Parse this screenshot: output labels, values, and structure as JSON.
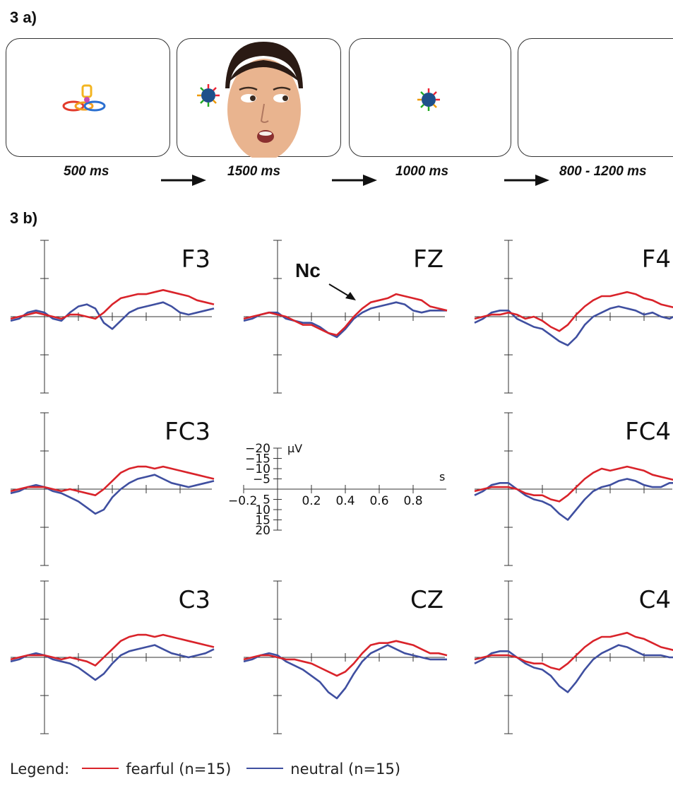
{
  "panel_a": {
    "label": "3 a)",
    "frames": [
      {
        "duration": "500 ms",
        "stimulus": "toy"
      },
      {
        "duration": "1500 ms",
        "stimulus": "face with toy"
      },
      {
        "duration": "1000 ms",
        "stimulus": "toy"
      },
      {
        "duration": "800 - 1200 ms",
        "stimulus": "blank"
      }
    ]
  },
  "panel_b": {
    "label": "3 b)",
    "annotation": "Nc"
  },
  "legend": {
    "title": "Legend:",
    "fearful": "fearful (n=15)",
    "neutral": "neutral (n=15)"
  },
  "colors": {
    "fearful": "#d9232a",
    "neutral": "#3f4fa0",
    "axis": "#333333"
  },
  "chart_data": {
    "type": "line",
    "x_unit": "s",
    "y_unit": "µV",
    "y_inverted": true,
    "xlim": [
      -0.2,
      1.0
    ],
    "ylim": [
      -20,
      20
    ],
    "scale_ticks_x": [
      -0.2,
      0.2,
      0.4,
      0.6,
      0.8
    ],
    "scale_ticks_y": [
      -20,
      -15,
      -10,
      -5,
      5,
      10,
      15,
      20
    ],
    "x": [
      -0.2,
      -0.15,
      -0.1,
      -0.05,
      0.0,
      0.05,
      0.1,
      0.15,
      0.2,
      0.25,
      0.3,
      0.35,
      0.4,
      0.45,
      0.5,
      0.55,
      0.6,
      0.65,
      0.7,
      0.75,
      0.8,
      0.85,
      0.9,
      0.95,
      1.0
    ],
    "series_names": [
      "fearful",
      "neutral"
    ],
    "channels": [
      {
        "name": "F3",
        "fearful": [
          1,
          0,
          -1,
          -2,
          -1,
          0,
          1,
          -1,
          -1,
          0,
          1,
          -2,
          -6,
          -9,
          -10,
          -11,
          -11,
          -12,
          -13,
          -12,
          -11,
          -10,
          -8,
          -7,
          -6
        ],
        "neutral": [
          2,
          1,
          -2,
          -3,
          -2,
          1,
          2,
          -2,
          -5,
          -6,
          -4,
          3,
          6,
          2,
          -2,
          -4,
          -5,
          -6,
          -7,
          -5,
          -2,
          -1,
          -2,
          -3,
          -4
        ]
      },
      {
        "name": "FZ",
        "fearful": [
          1,
          0,
          -1,
          -2,
          -1,
          0,
          2,
          4,
          4,
          6,
          8,
          9,
          5,
          0,
          -4,
          -7,
          -8,
          -9,
          -11,
          -10,
          -9,
          -8,
          -5,
          -4,
          -3
        ],
        "neutral": [
          2,
          1,
          -1,
          -2,
          -2,
          1,
          2,
          3,
          3,
          5,
          8,
          10,
          6,
          1,
          -2,
          -4,
          -5,
          -6,
          -7,
          -6,
          -3,
          -2,
          -3,
          -3,
          -3
        ]
      },
      {
        "name": "F4",
        "fearful": [
          1,
          0,
          -1,
          -1,
          -2,
          -1,
          1,
          0,
          2,
          5,
          7,
          4,
          -1,
          -5,
          -8,
          -10,
          -10,
          -11,
          -12,
          -11,
          -9,
          -8,
          -6,
          -5,
          -4
        ],
        "neutral": [
          3,
          1,
          -2,
          -3,
          -3,
          1,
          3,
          5,
          6,
          9,
          12,
          14,
          10,
          4,
          0,
          -2,
          -4,
          -5,
          -4,
          -3,
          -1,
          -2,
          0,
          1,
          -1
        ]
      },
      {
        "name": "FC3",
        "fearful": [
          1,
          0,
          -1,
          -1,
          -1,
          0,
          1,
          0,
          1,
          2,
          3,
          0,
          -4,
          -8,
          -10,
          -11,
          -11,
          -10,
          -11,
          -10,
          -9,
          -8,
          -7,
          -6,
          -5
        ],
        "neutral": [
          2,
          1,
          -1,
          -2,
          -1,
          1,
          2,
          4,
          6,
          9,
          12,
          10,
          4,
          0,
          -3,
          -5,
          -6,
          -7,
          -5,
          -3,
          -2,
          -1,
          -2,
          -3,
          -4
        ]
      },
      {
        "name": "FC4",
        "fearful": [
          1,
          0,
          -1,
          -1,
          -1,
          0,
          2,
          3,
          3,
          5,
          6,
          3,
          -1,
          -5,
          -8,
          -10,
          -9,
          -10,
          -11,
          -10,
          -9,
          -7,
          -6,
          -5,
          -4
        ],
        "neutral": [
          3,
          1,
          -2,
          -3,
          -3,
          0,
          3,
          5,
          6,
          8,
          12,
          15,
          10,
          5,
          1,
          -1,
          -2,
          -4,
          -5,
          -4,
          -2,
          -1,
          -1,
          -3,
          -3
        ]
      },
      {
        "name": "C3",
        "fearful": [
          1,
          0,
          -1,
          -1,
          -1,
          0,
          1,
          0,
          1,
          2,
          4,
          0,
          -4,
          -8,
          -10,
          -11,
          -11,
          -10,
          -11,
          -10,
          -9,
          -8,
          -7,
          -6,
          -5
        ],
        "neutral": [
          2,
          1,
          -1,
          -2,
          -1,
          1,
          2,
          3,
          5,
          8,
          11,
          8,
          3,
          -1,
          -3,
          -4,
          -5,
          -6,
          -4,
          -2,
          -1,
          0,
          -1,
          -2,
          -4
        ]
      },
      {
        "name": "CZ",
        "fearful": [
          1,
          0,
          -1,
          -1,
          0,
          1,
          1,
          2,
          3,
          5,
          7,
          9,
          7,
          3,
          -2,
          -6,
          -7,
          -7,
          -8,
          -7,
          -6,
          -4,
          -2,
          -2,
          -1
        ],
        "neutral": [
          2,
          1,
          -1,
          -2,
          -1,
          2,
          4,
          6,
          9,
          12,
          17,
          20,
          15,
          8,
          2,
          -2,
          -4,
          -6,
          -4,
          -2,
          -1,
          0,
          1,
          1,
          1
        ]
      },
      {
        "name": "C4",
        "fearful": [
          1,
          0,
          -1,
          -1,
          -1,
          0,
          2,
          3,
          3,
          5,
          6,
          3,
          -1,
          -5,
          -8,
          -10,
          -10,
          -11,
          -12,
          -10,
          -9,
          -7,
          -5,
          -4,
          -3
        ],
        "neutral": [
          3,
          1,
          -2,
          -3,
          -3,
          0,
          3,
          5,
          6,
          9,
          14,
          17,
          12,
          6,
          1,
          -2,
          -4,
          -6,
          -5,
          -3,
          -1,
          -1,
          -1,
          0,
          0
        ]
      }
    ]
  }
}
